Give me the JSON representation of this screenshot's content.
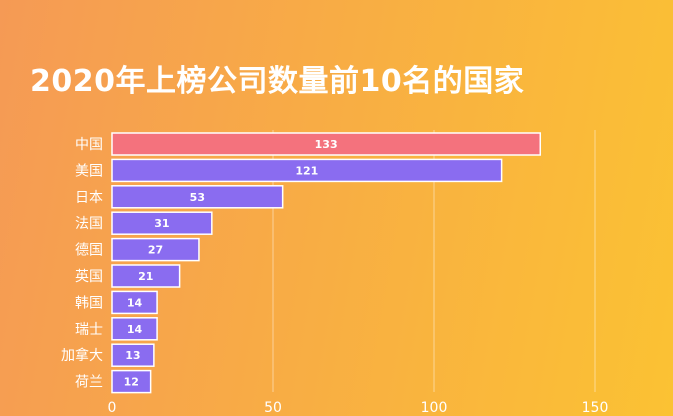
{
  "chart_data": {
    "type": "bar",
    "orientation": "horizontal",
    "title": "2020年上榜公司数量前10名的国家",
    "categories": [
      "中国",
      "美国",
      "日本",
      "法国",
      "德国",
      "英国",
      "韩国",
      "瑞士",
      "加拿大",
      "荷兰"
    ],
    "values": [
      133,
      121,
      53,
      31,
      27,
      21,
      14,
      14,
      13,
      12
    ],
    "xlim": [
      0,
      150
    ],
    "xticks": [
      0,
      50,
      100,
      150
    ],
    "grid": true,
    "colors": {
      "highlight": "#f4727d",
      "bar": "#8a6cf0",
      "bar_border": "#ffffff",
      "text": "#ffffff"
    }
  }
}
